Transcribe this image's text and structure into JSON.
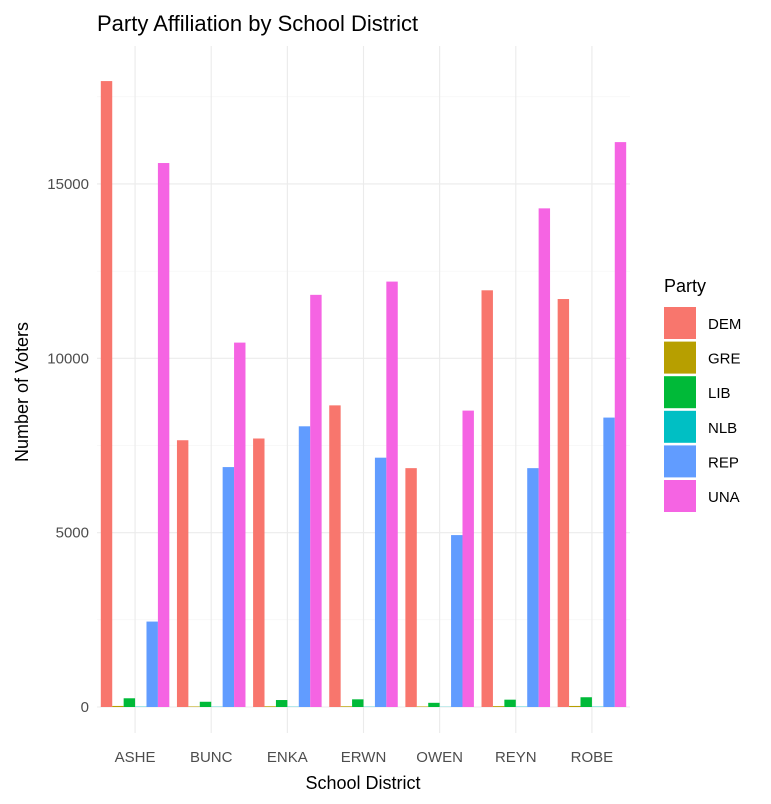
{
  "chart_data": {
    "type": "bar",
    "title": "Party Affiliation by School District",
    "xlabel": "School District",
    "ylabel": "Number of Voters",
    "categories": [
      "ASHE",
      "BUNC",
      "ENKA",
      "ERWN",
      "OWEN",
      "REYN",
      "ROBE"
    ],
    "ylim": [
      0,
      18000
    ],
    "yticks": [
      0,
      5000,
      10000,
      15000
    ],
    "yticklabels": [
      "0",
      "5000",
      "10000",
      "15000"
    ],
    "grid": true,
    "legend": {
      "title": "Party",
      "position": "right"
    },
    "series": [
      {
        "name": "DEM",
        "color": "#F8766D",
        "values": [
          17950,
          7650,
          7700,
          8650,
          6850,
          11950,
          11700
        ]
      },
      {
        "name": "GRE",
        "color": "#B79F00",
        "values": [
          30,
          15,
          20,
          20,
          15,
          25,
          30
        ]
      },
      {
        "name": "LIB",
        "color": "#00BA38",
        "values": [
          250,
          150,
          200,
          220,
          120,
          210,
          280
        ]
      },
      {
        "name": "NLB",
        "color": "#00BFC4",
        "values": [
          10,
          8,
          8,
          8,
          6,
          10,
          10
        ]
      },
      {
        "name": "REP",
        "color": "#619CFF",
        "values": [
          2450,
          6880,
          8050,
          7150,
          4930,
          6850,
          8300
        ]
      },
      {
        "name": "UNA",
        "color": "#F564E3",
        "values": [
          15600,
          10450,
          11820,
          12200,
          8500,
          14300,
          16200
        ]
      }
    ]
  }
}
